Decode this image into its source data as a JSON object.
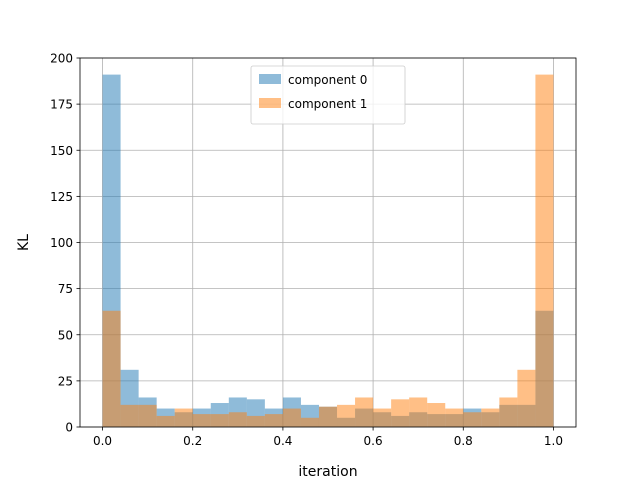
{
  "chart_data": {
    "type": "bar",
    "subtype": "histogram",
    "xlabel": "iteration",
    "ylabel": "KL",
    "xlim": [
      -0.05,
      1.05
    ],
    "ylim": [
      0,
      200
    ],
    "xticks": [
      0.0,
      0.2,
      0.4,
      0.6,
      0.8,
      1.0
    ],
    "xtick_labels": [
      "0.0",
      "0.2",
      "0.4",
      "0.6",
      "0.8",
      "1.0"
    ],
    "yticks": [
      0,
      25,
      50,
      75,
      100,
      125,
      150,
      175,
      200
    ],
    "ytick_labels": [
      "0",
      "25",
      "50",
      "75",
      "100",
      "125",
      "150",
      "175",
      "200"
    ],
    "grid": true,
    "legend": "top-center",
    "bin_edges": [
      0.0,
      0.04,
      0.08,
      0.12,
      0.16,
      0.2,
      0.24,
      0.28,
      0.32,
      0.36,
      0.4,
      0.44,
      0.48,
      0.52,
      0.56,
      0.6,
      0.64,
      0.68,
      0.72,
      0.76,
      0.8,
      0.84,
      0.88,
      0.92,
      0.96,
      1.0
    ],
    "series": [
      {
        "name": "component 0",
        "color": "#1f77b4",
        "alpha": 0.5,
        "values": [
          191,
          31,
          16,
          10,
          8,
          10,
          13,
          16,
          15,
          10,
          16,
          12,
          11,
          5,
          10,
          8,
          6,
          8,
          7,
          7,
          10,
          8,
          12,
          12,
          63
        ]
      },
      {
        "name": "component 1",
        "color": "#ff7f0e",
        "alpha": 0.5,
        "values": [
          63,
          12,
          12,
          6,
          10,
          7,
          7,
          8,
          6,
          7,
          10,
          5,
          11,
          12,
          16,
          10,
          15,
          16,
          13,
          10,
          8,
          10,
          16,
          31,
          191
        ]
      }
    ]
  }
}
